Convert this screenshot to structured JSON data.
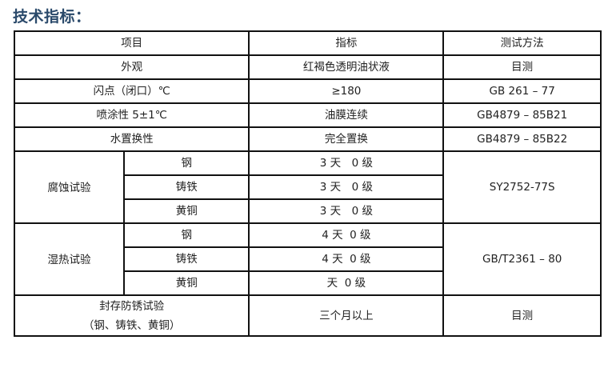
{
  "title": "技术指标：",
  "header": [
    "项目",
    "指标",
    "测试方法"
  ],
  "simple_rows": [
    {
      "item": "外观",
      "value": "红褐色透明油状液",
      "method": "目测"
    },
    {
      "item": "闪点（闭口）℃",
      "value": "≥180",
      "method": "GB 261 – 77"
    },
    {
      "item": "喷涂性 5±1℃",
      "value": "油膜连续",
      "method": "GB4879 – 85B21"
    },
    {
      "item": "水置换性",
      "value": "完全置换",
      "method": "GB4879 – 85B22"
    }
  ],
  "groups": [
    {
      "item": "腐蚀试验",
      "method": "SY2752-77S",
      "sub": [
        {
          "metal": "钢",
          "value": "3 天　0 级"
        },
        {
          "metal": "铸铁",
          "value": "3 天　0 级"
        },
        {
          "metal": "黄铜",
          "value": "3 天　0 级"
        }
      ]
    },
    {
      "item": "湿热试验",
      "method": "GB/T2361 – 80",
      "sub": [
        {
          "metal": "钢",
          "value": "4 天  0 级"
        },
        {
          "metal": "铸铁",
          "value": "4 天  0 级"
        },
        {
          "metal": "黄铜",
          "value": "天  0 级"
        }
      ]
    }
  ],
  "last_row": {
    "item_line1": "封存防锈试验",
    "item_line2": "（钢、铸铁、黄铜）",
    "value": "三个月以上",
    "method": "目测"
  }
}
